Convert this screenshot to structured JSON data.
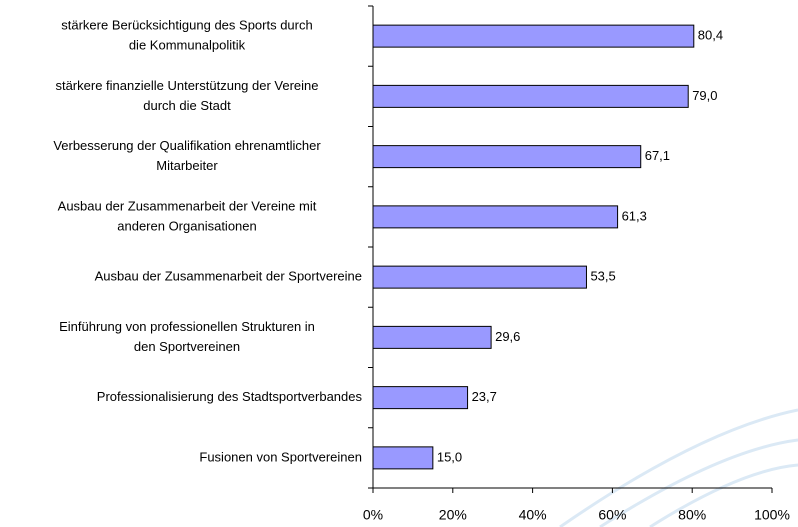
{
  "chart_data": {
    "type": "barh",
    "categories": [
      [
        "stärkere Berücksichtigung des Sports durch",
        "die Kommunalpolitik"
      ],
      [
        "stärkere finanzielle Unterstützung der Vereine",
        "durch die Stadt"
      ],
      [
        "Verbesserung der Qualifikation ehrenamtlicher",
        "Mitarbeiter"
      ],
      [
        "Ausbau der Zusammenarbeit der Vereine mit",
        "anderen Organisationen"
      ],
      [
        "Ausbau der Zusammenarbeit der Sportvereine"
      ],
      [
        "Einführung von professionellen Strukturen in",
        "den Sportvereinen"
      ],
      [
        "Professionalisierung  des  Stadtsportverbandes"
      ],
      [
        "Fusionen von Sportvereinen"
      ]
    ],
    "values": [
      80.4,
      79.0,
      67.1,
      61.3,
      53.5,
      29.6,
      23.7,
      15.0
    ],
    "value_labels": [
      "80,4",
      "79,0",
      "67,1",
      "61,3",
      "53,5",
      "29,6",
      "23,7",
      "15,0"
    ],
    "color": "#9999ff",
    "xlim": [
      0,
      100
    ],
    "xticks": [
      {
        "value": 0,
        "label": "0%"
      },
      {
        "value": 20,
        "label": "20%"
      },
      {
        "value": 40,
        "label": "40%"
      },
      {
        "value": 60,
        "label": "60%"
      },
      {
        "value": 80,
        "label": "80%"
      },
      {
        "value": 100,
        "label": "100%"
      }
    ]
  }
}
